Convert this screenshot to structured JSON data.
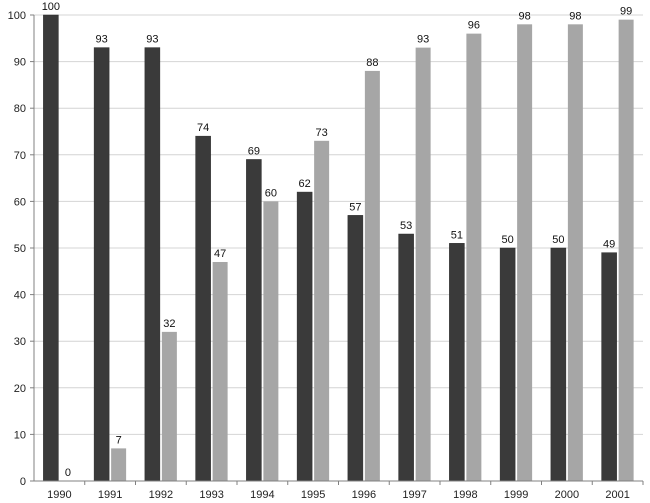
{
  "chart_data": {
    "type": "bar",
    "categories": [
      "1990",
      "1991",
      "1992",
      "1993",
      "1994",
      "1995",
      "1996",
      "1997",
      "1998",
      "1999",
      "2000",
      "2001"
    ],
    "series": [
      {
        "values": [
          100,
          93,
          93,
          74,
          69,
          62,
          57,
          53,
          51,
          50,
          50,
          49
        ],
        "color": "#3a3a3a"
      },
      {
        "values": [
          0,
          7,
          32,
          47,
          60,
          73,
          88,
          93,
          96,
          98,
          98,
          99
        ],
        "color": "#a6a6a6"
      }
    ],
    "title": "",
    "xlabel": "",
    "ylabel": "",
    "ylim": [
      0,
      100
    ],
    "yticks": [
      0,
      10,
      20,
      30,
      40,
      50,
      60,
      70,
      80,
      90,
      100
    ],
    "grid": true,
    "legend": "none",
    "data_labels": true
  }
}
